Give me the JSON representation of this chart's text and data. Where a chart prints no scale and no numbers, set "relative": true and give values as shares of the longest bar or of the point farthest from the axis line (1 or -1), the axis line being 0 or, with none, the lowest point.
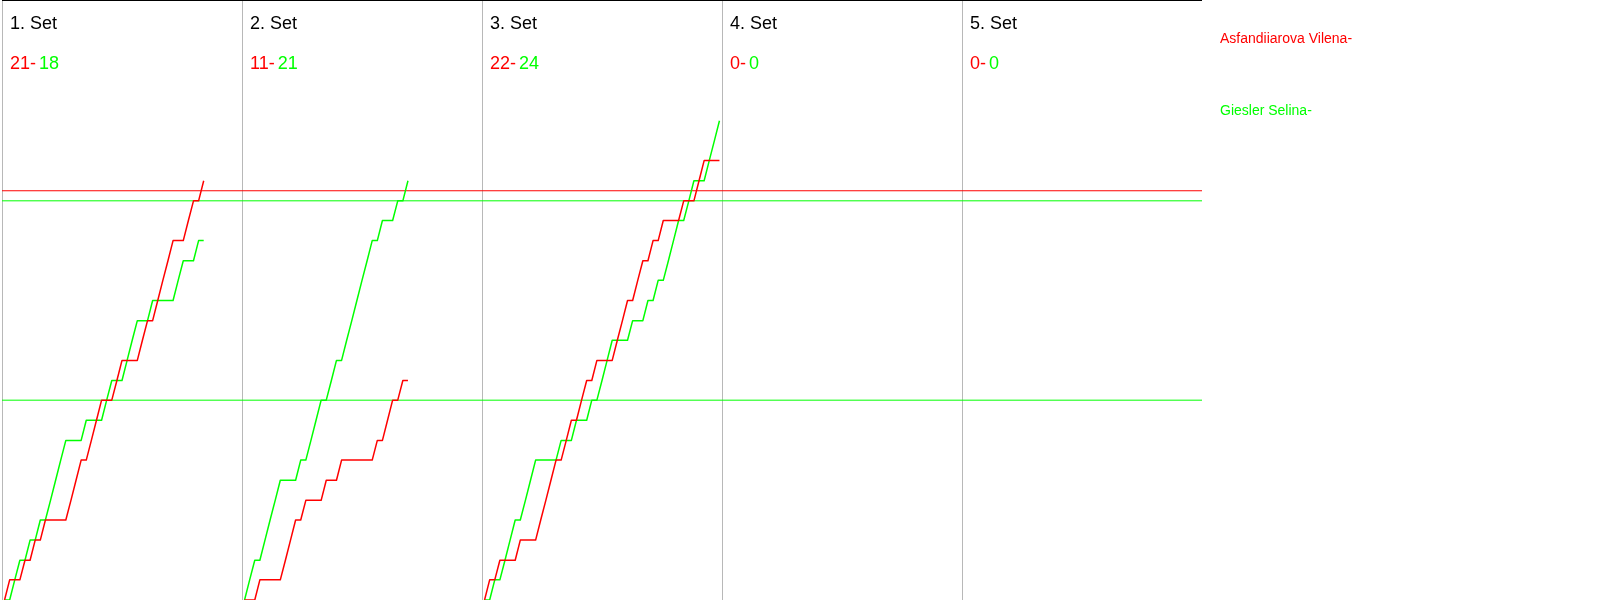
{
  "chart_data": {
    "type": "line",
    "relative": true,
    "legend": "right",
    "annotations": [
      "1. Set",
      "21-",
      "18",
      "2. Set",
      "11-",
      "21",
      "3. Set",
      "22-",
      "24",
      "4. Set",
      "0-",
      "0",
      "5. Set",
      "0-",
      "0"
    ],
    "categories": [
      null,
      null,
      null,
      null,
      null,
      null,
      null,
      null,
      null,
      null,
      null,
      null,
      null,
      null,
      null,
      null,
      null,
      null,
      null,
      null,
      null,
      null,
      null,
      null,
      null,
      null,
      null,
      null,
      null,
      null,
      null,
      null,
      null,
      null,
      null,
      null,
      null,
      null,
      null,
      null,
      null,
      null,
      null,
      null,
      null,
      null,
      null,
      null,
      null,
      null,
      null,
      null,
      null,
      null,
      null,
      null,
      null,
      null,
      null,
      null,
      null,
      null,
      null,
      null,
      null,
      null,
      null,
      null,
      null,
      null,
      null,
      null,
      null,
      null,
      null,
      null,
      null,
      null,
      null,
      null,
      null,
      null,
      null,
      null,
      null,
      null,
      null,
      null,
      null,
      null,
      null,
      null,
      null,
      null,
      null,
      null,
      null,
      null,
      null,
      null,
      null,
      null,
      null,
      null,
      null,
      null,
      null,
      null,
      null,
      null,
      null,
      null,
      null,
      null,
      null,
      null,
      null,
      null,
      null,
      null,
      null,
      null,
      null,
      null,
      null,
      null,
      null,
      null,
      null,
      null,
      null,
      null,
      null,
      null,
      null,
      null,
      null,
      null,
      null,
      null,
      null,
      null,
      null,
      null,
      null,
      null,
      null,
      null,
      null,
      null,
      null,
      null,
      null,
      null,
      null,
      null,
      null,
      null,
      null,
      null,
      null,
      null,
      null,
      null,
      null,
      null,
      null,
      null,
      null,
      null,
      null,
      null,
      null,
      null,
      null,
      null,
      null,
      null,
      null,
      null,
      null,
      null,
      null,
      null,
      null,
      null,
      null,
      null,
      null,
      null,
      null,
      null,
      null,
      null,
      null,
      null,
      null,
      null,
      null,
      null,
      null,
      null,
      null,
      null,
      null,
      null,
      null,
      null,
      null,
      null,
      null,
      null,
      null,
      null,
      null,
      null,
      null,
      null,
      null,
      null,
      null,
      null,
      null,
      null,
      null,
      null,
      null,
      null,
      null,
      null,
      null,
      null,
      null,
      null,
      null
    ],
    "ref_lines": [
      {
        "axis": "y",
        "value": 0.854,
        "color": "#ff0000"
      },
      {
        "axis": "y",
        "value": 0.833,
        "color": "#00ff00"
      },
      {
        "axis": "y",
        "value": 0.417,
        "color": "#00ff00"
      }
    ],
    "series": [
      {
        "name": "Asfandiiarova Vilena-",
        "color": "#ff0000",
        "values": [
          0,
          0.042,
          0.042,
          0.042,
          0.083,
          0.083,
          0.125,
          0.125,
          0.167,
          0.167,
          0.167,
          0.167,
          0.167,
          0.208,
          0.25,
          0.292,
          0.292,
          0.333,
          0.375,
          0.417,
          0.417,
          0.417,
          0.458,
          0.5,
          0.5,
          0.5,
          0.5,
          0.542,
          0.583,
          0.583,
          0.625,
          0.667,
          0.708,
          0.75,
          0.75,
          0.75,
          0.792,
          0.833,
          0.833,
          0.875,
          null,
          null,
          null,
          null,
          null,
          null,
          null,
          null,
          null,
          null,
          null,
          null,
          null,
          null,
          null,
          null,
          null,
          null,
          null,
          null,
          null,
          null,
          null,
          null,
          null,
          null,
          null,
          null,
          null,
          null,
          null,
          null,
          null,
          null,
          null,
          null,
          null,
          null,
          null,
          null,
          null,
          null,
          null,
          null,
          null,
          null,
          null,
          null,
          null,
          null,
          null,
          null,
          null,
          null,
          null,
          null,
          null,
          null,
          null,
          null,
          null,
          null,
          null,
          null,
          null,
          null,
          null,
          null,
          null,
          null,
          null,
          null,
          null,
          null,
          null,
          null,
          null,
          null,
          null,
          null,
          null,
          null,
          null,
          null,
          null,
          null,
          null,
          null,
          null,
          null,
          null,
          null,
          null,
          null,
          null,
          null,
          null,
          null,
          null,
          null,
          null,
          null,
          null,
          null,
          null,
          null,
          null,
          null,
          null,
          null,
          null,
          null,
          null,
          null,
          null,
          null,
          null,
          null,
          null,
          null,
          null,
          null,
          null,
          null,
          null,
          null,
          null,
          null,
          null,
          null,
          null,
          null,
          null,
          null,
          null,
          null,
          null,
          null,
          null,
          null,
          null,
          null,
          null,
          null,
          null,
          null,
          null,
          null,
          null,
          null,
          null,
          null,
          null,
          null,
          null,
          null,
          null,
          null,
          null,
          null,
          null,
          null,
          null,
          null,
          null,
          null,
          null,
          null,
          null,
          null,
          null,
          null,
          null,
          null,
          null,
          null,
          null,
          null,
          null,
          null,
          null,
          null,
          null,
          null,
          null,
          null,
          null,
          null,
          null,
          null,
          null,
          null,
          null,
          null,
          null
        ]
      },
      {
        "name": "Giesler Selina-",
        "color": "#00ff00",
        "values": [
          0,
          0,
          0.042,
          0.083,
          0.083,
          0.125,
          0.125,
          0.167,
          0.167,
          0.208,
          0.25,
          0.292,
          0.333,
          0.333,
          0.333,
          0.333,
          0.375,
          0.375,
          0.375,
          0.375,
          0.417,
          0.458,
          0.458,
          0.458,
          0.5,
          0.542,
          0.583,
          0.583,
          0.583,
          0.625,
          0.625,
          0.625,
          0.625,
          0.625,
          0.667,
          0.708,
          0.708,
          0.708,
          0.75,
          0.75,
          null,
          null,
          null,
          null,
          null,
          null,
          null,
          null,
          null,
          null,
          null,
          null,
          null,
          null,
          null,
          null,
          null,
          null,
          null,
          null,
          null,
          null,
          null,
          null,
          null,
          null,
          null,
          null,
          null,
          null,
          null,
          null,
          null,
          null,
          null,
          null,
          null,
          null,
          null,
          null,
          null,
          null,
          null,
          null,
          null,
          null,
          null,
          null,
          null,
          null,
          null,
          null,
          null,
          null,
          null,
          null,
          null,
          null,
          null,
          null,
          null,
          null,
          null,
          null,
          null,
          null,
          null,
          null,
          null,
          null,
          null,
          null,
          null,
          null,
          null,
          null,
          null,
          null,
          null,
          null,
          null,
          null,
          null,
          null,
          null,
          null,
          null,
          null,
          null,
          null,
          null,
          null,
          null,
          null,
          null,
          null,
          null,
          null,
          null,
          null,
          null,
          null,
          null,
          null,
          null,
          null,
          null,
          null,
          null,
          null,
          null,
          null,
          null,
          null,
          null,
          null,
          null,
          null,
          null,
          null,
          null,
          null,
          null,
          null,
          null,
          null,
          null,
          null,
          null,
          null,
          null,
          null,
          null,
          null,
          null,
          null,
          null,
          null,
          null,
          null,
          null,
          null,
          null,
          null,
          null,
          null,
          null,
          null,
          null,
          null,
          null,
          null,
          null,
          null,
          null,
          null,
          null,
          null,
          null,
          null,
          null,
          null,
          null,
          null,
          null,
          null,
          null,
          null,
          null,
          null,
          null,
          null,
          null,
          null,
          null,
          null,
          null,
          null,
          null,
          null,
          null,
          null,
          null,
          null,
          null,
          null,
          null,
          null,
          null,
          null,
          null,
          null,
          null,
          null,
          null
        ]
      },
      {
        "color": "#ff0000",
        "values": [
          null,
          null,
          null,
          null,
          null,
          null,
          null,
          null,
          null,
          null,
          null,
          null,
          null,
          null,
          null,
          null,
          null,
          null,
          null,
          null,
          null,
          null,
          null,
          null,
          null,
          null,
          null,
          null,
          null,
          null,
          null,
          null,
          null,
          null,
          null,
          null,
          null,
          null,
          null,
          null,
          null,
          null,
          null,
          null,
          null,
          null,
          null,
          0,
          0,
          0,
          0.042,
          0.042,
          0.042,
          0.042,
          0.042,
          0.083,
          0.125,
          0.167,
          0.167,
          0.208,
          0.208,
          0.208,
          0.208,
          0.25,
          0.25,
          0.25,
          0.292,
          0.292,
          0.292,
          0.292,
          0.292,
          0.292,
          0.292,
          0.333,
          0.333,
          0.375,
          0.417,
          0.417,
          0.458,
          0.458,
          null,
          null,
          null,
          null,
          null,
          null,
          null,
          null,
          null,
          null,
          null,
          null,
          null,
          null,
          null,
          null,
          null,
          null,
          null,
          null,
          null,
          null,
          null,
          null,
          null,
          null,
          null,
          null,
          null,
          null,
          null,
          null,
          null,
          null,
          null,
          null,
          null,
          null,
          null,
          null,
          null,
          null,
          null,
          null,
          null,
          null,
          null,
          null,
          null,
          null,
          null,
          null,
          null,
          null,
          null,
          null,
          null,
          null,
          null,
          null,
          null,
          null,
          null,
          null,
          null,
          null,
          null,
          null,
          null,
          null,
          null,
          null,
          null,
          null,
          null,
          null,
          null,
          null,
          null,
          null,
          null,
          null,
          null,
          null,
          null,
          null,
          null,
          null,
          null,
          null,
          null,
          null,
          null,
          null,
          null,
          null,
          null,
          null,
          null,
          null,
          null,
          null,
          null,
          null,
          null,
          null,
          null,
          null,
          null,
          null,
          null,
          null,
          null,
          null,
          null,
          null,
          null,
          null,
          null,
          null,
          null,
          null,
          null,
          null,
          null,
          null,
          null,
          null,
          null,
          null,
          null,
          null,
          null,
          null,
          null,
          null,
          null,
          null,
          null,
          null,
          null,
          null,
          null,
          null,
          null,
          null,
          null,
          null,
          null,
          null,
          null,
          null,
          null,
          null,
          null
        ]
      },
      {
        "color": "#00ff00",
        "values": [
          null,
          null,
          null,
          null,
          null,
          null,
          null,
          null,
          null,
          null,
          null,
          null,
          null,
          null,
          null,
          null,
          null,
          null,
          null,
          null,
          null,
          null,
          null,
          null,
          null,
          null,
          null,
          null,
          null,
          null,
          null,
          null,
          null,
          null,
          null,
          null,
          null,
          null,
          null,
          null,
          null,
          null,
          null,
          null,
          null,
          null,
          null,
          0,
          0.042,
          0.083,
          0.083,
          0.125,
          0.167,
          0.208,
          0.25,
          0.25,
          0.25,
          0.25,
          0.292,
          0.292,
          0.333,
          0.375,
          0.417,
          0.417,
          0.458,
          0.5,
          0.5,
          0.542,
          0.583,
          0.625,
          0.667,
          0.708,
          0.75,
          0.75,
          0.792,
          0.792,
          0.792,
          0.833,
          0.833,
          0.875,
          null,
          null,
          null,
          null,
          null,
          null,
          null,
          null,
          null,
          null,
          null,
          null,
          null,
          null,
          null,
          null,
          null,
          null,
          null,
          null,
          null,
          null,
          null,
          null,
          null,
          null,
          null,
          null,
          null,
          null,
          null,
          null,
          null,
          null,
          null,
          null,
          null,
          null,
          null,
          null,
          null,
          null,
          null,
          null,
          null,
          null,
          null,
          null,
          null,
          null,
          null,
          null,
          null,
          null,
          null,
          null,
          null,
          null,
          null,
          null,
          null,
          null,
          null,
          null,
          null,
          null,
          null,
          null,
          null,
          null,
          null,
          null,
          null,
          null,
          null,
          null,
          null,
          null,
          null,
          null,
          null,
          null,
          null,
          null,
          null,
          null,
          null,
          null,
          null,
          null,
          null,
          null,
          null,
          null,
          null,
          null,
          null,
          null,
          null,
          null,
          null,
          null,
          null,
          null,
          null,
          null,
          null,
          null,
          null,
          null,
          null,
          null,
          null,
          null,
          null,
          null,
          null,
          null,
          null,
          null,
          null,
          null,
          null,
          null,
          null,
          null,
          null,
          null,
          null,
          null,
          null,
          null,
          null,
          null,
          null,
          null,
          null,
          null,
          null,
          null,
          null,
          null,
          null,
          null,
          null,
          null,
          null,
          null,
          null,
          null,
          null,
          null,
          null,
          null,
          null
        ]
      },
      {
        "color": "#ff0000",
        "values": [
          null,
          null,
          null,
          null,
          null,
          null,
          null,
          null,
          null,
          null,
          null,
          null,
          null,
          null,
          null,
          null,
          null,
          null,
          null,
          null,
          null,
          null,
          null,
          null,
          null,
          null,
          null,
          null,
          null,
          null,
          null,
          null,
          null,
          null,
          null,
          null,
          null,
          null,
          null,
          null,
          null,
          null,
          null,
          null,
          null,
          null,
          null,
          null,
          null,
          null,
          null,
          null,
          null,
          null,
          null,
          null,
          null,
          null,
          null,
          null,
          null,
          null,
          null,
          null,
          null,
          null,
          null,
          null,
          null,
          null,
          null,
          null,
          null,
          null,
          null,
          null,
          null,
          null,
          null,
          null,
          null,
          null,
          null,
          null,
          null,
          null,
          null,
          null,
          null,
          null,
          null,
          null,
          null,
          null,
          0,
          0.042,
          0.042,
          0.083,
          0.083,
          0.083,
          0.083,
          0.125,
          0.125,
          0.125,
          0.125,
          0.167,
          0.208,
          0.25,
          0.292,
          0.292,
          0.333,
          0.375,
          0.375,
          0.417,
          0.458,
          0.458,
          0.5,
          0.5,
          0.5,
          0.5,
          0.542,
          0.583,
          0.625,
          0.625,
          0.667,
          0.708,
          0.708,
          0.75,
          0.75,
          0.792,
          0.792,
          0.792,
          0.792,
          0.833,
          0.833,
          0.833,
          0.875,
          0.917,
          0.917,
          0.917,
          0.917,
          null,
          null,
          null,
          null,
          null,
          null,
          null,
          null,
          null,
          null,
          null,
          null,
          null,
          null,
          null,
          null,
          null,
          null,
          null,
          null,
          null,
          null,
          null,
          null,
          null,
          null,
          null,
          null,
          null,
          null,
          null,
          null,
          null,
          null,
          null,
          null,
          null,
          null,
          null,
          null,
          null,
          null,
          null,
          null,
          null,
          null,
          null,
          null,
          null,
          null,
          null,
          null,
          null,
          null,
          null,
          null,
          null,
          null,
          null,
          null,
          null,
          null,
          null,
          null,
          null,
          null,
          null,
          null,
          null,
          null,
          null,
          null,
          null,
          null,
          null,
          null,
          null,
          null,
          null,
          null,
          null,
          null,
          null,
          null,
          null,
          null,
          null,
          null,
          null,
          null,
          null,
          null,
          null,
          null
        ]
      },
      {
        "color": "#00ff00",
        "values": [
          null,
          null,
          null,
          null,
          null,
          null,
          null,
          null,
          null,
          null,
          null,
          null,
          null,
          null,
          null,
          null,
          null,
          null,
          null,
          null,
          null,
          null,
          null,
          null,
          null,
          null,
          null,
          null,
          null,
          null,
          null,
          null,
          null,
          null,
          null,
          null,
          null,
          null,
          null,
          null,
          null,
          null,
          null,
          null,
          null,
          null,
          null,
          null,
          null,
          null,
          null,
          null,
          null,
          null,
          null,
          null,
          null,
          null,
          null,
          null,
          null,
          null,
          null,
          null,
          null,
          null,
          null,
          null,
          null,
          null,
          null,
          null,
          null,
          null,
          null,
          null,
          null,
          null,
          null,
          null,
          null,
          null,
          null,
          null,
          null,
          null,
          null,
          null,
          null,
          null,
          null,
          null,
          null,
          null,
          0,
          0,
          0.042,
          0.042,
          0.083,
          0.125,
          0.167,
          0.167,
          0.208,
          0.25,
          0.292,
          0.292,
          0.292,
          0.292,
          0.292,
          0.333,
          0.333,
          0.333,
          0.375,
          0.375,
          0.375,
          0.417,
          0.417,
          0.458,
          0.5,
          0.542,
          0.542,
          0.542,
          0.542,
          0.583,
          0.583,
          0.583,
          0.625,
          0.625,
          0.667,
          0.667,
          0.708,
          0.75,
          0.792,
          0.792,
          0.833,
          0.875,
          0.875,
          0.875,
          0.917,
          0.958,
          1,
          null,
          null,
          null,
          null,
          null,
          null,
          null,
          null,
          null,
          null,
          null,
          null,
          null,
          null,
          null,
          null,
          null,
          null,
          null,
          null,
          null,
          null,
          null,
          null,
          null,
          null,
          null,
          null,
          null,
          null,
          null,
          null,
          null,
          null,
          null,
          null,
          null,
          null,
          null,
          null,
          null,
          null,
          null,
          null,
          null,
          null,
          null,
          null,
          null,
          null,
          null,
          null,
          null,
          null,
          null,
          null,
          null,
          null,
          null,
          null,
          null,
          null,
          null,
          null,
          null,
          null,
          null,
          null,
          null,
          null,
          null,
          null,
          null,
          null,
          null,
          null,
          null,
          null,
          null,
          null,
          null,
          null,
          null,
          null,
          null,
          null,
          null,
          null,
          null,
          null,
          null,
          null,
          null,
          null
        ]
      }
    ]
  }
}
